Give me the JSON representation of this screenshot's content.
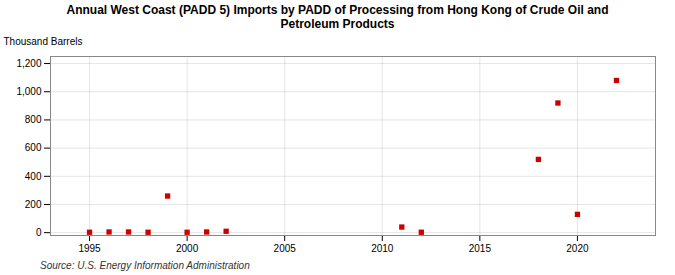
{
  "chart_data": {
    "type": "scatter",
    "title": "Annual West Coast (PADD 5) Imports by PADD of Processing from Hong Kong of Crude Oil and\nPetroleum Products",
    "ylabel": "Thousand Barrels",
    "source": "Source: U.S. Energy Information Administration",
    "x": [
      1995,
      1996,
      1997,
      1998,
      1999,
      2000,
      2001,
      2002,
      2011,
      2012,
      2018,
      2019,
      2020,
      2022
    ],
    "values": [
      3,
      5,
      5,
      3,
      260,
      3,
      5,
      10,
      40,
      3,
      520,
      920,
      130,
      1080
    ],
    "color": "#cc0000",
    "marker": "square",
    "xlim": [
      1993,
      2024
    ],
    "xticks": [
      1995,
      2000,
      2005,
      2010,
      2015,
      2020
    ],
    "ylim": [
      -20,
      1250
    ],
    "yticks": [
      0,
      200,
      400,
      600,
      800,
      {
        "value": 1000,
        "label": "1,000"
      },
      {
        "value": 1200,
        "label": "1,200"
      }
    ],
    "grid": true
  }
}
